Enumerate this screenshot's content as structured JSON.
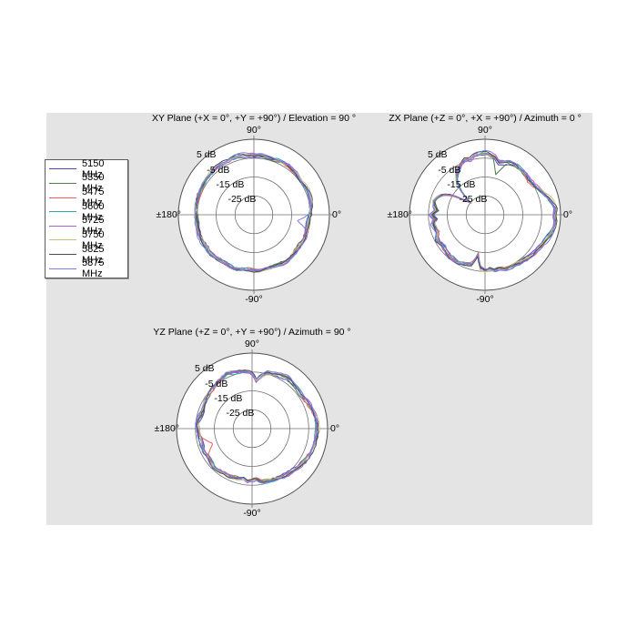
{
  "figure": {
    "background": "#ffffff",
    "panel_color": "#e4e4e4",
    "grid_color": "#6f6f6f",
    "outer_ring_color": "#4f4f4f"
  },
  "frequencies": [
    {
      "label": "5150 MHz",
      "color": "#4747D1"
    },
    {
      "label": "5350 MHz",
      "color": "#4E7D4E"
    },
    {
      "label": "5475 MHz",
      "color": "#F25C5C"
    },
    {
      "label": "5600 MHz",
      "color": "#2FA8A8"
    },
    {
      "label": "5725 MHz",
      "color": "#B35FC9"
    },
    {
      "label": "5750 MHz",
      "color": "#C2C27E"
    },
    {
      "label": "5825 MHz",
      "color": "#4D4D4D"
    },
    {
      "label": "5875 MHz",
      "color": "#7B7BEB"
    }
  ],
  "chart_data": [
    {
      "id": "xy-plane",
      "type": "polar-line",
      "title": "XY Plane (+X = 0°, +Y = +90°) / Elevation = 90 °",
      "angle_labels": {
        "top": "90°",
        "right": "0°",
        "left": "±180°",
        "bottom": "-90°"
      },
      "ring_labels": [
        "5 dB",
        "-5 dB",
        "-15 dB",
        "-25 dB"
      ],
      "ring_values_dB": [
        5,
        -5,
        -15,
        -25
      ],
      "center_dB": -35,
      "unit": "dB",
      "angle_step_deg": 5,
      "base_pattern_dB": [
        -5.5,
        -5.0,
        -4.6,
        -4.2,
        -4.0,
        -3.8,
        -4.0,
        -4.4,
        -4.2,
        -3.8,
        -3.6,
        -3.4,
        -3.2,
        -3.4,
        -3.6,
        -3.4,
        -3.2,
        -3.4,
        -3.6,
        -3.4,
        -3.2,
        -3.0,
        -3.2,
        -3.4,
        -3.2,
        -3.0,
        -3.2,
        -3.4,
        -3.6,
        -3.4,
        -3.6,
        -3.8,
        -4.0,
        -4.2,
        -4.0,
        -3.8,
        -4.0,
        -4.2,
        -4.4,
        -4.2,
        -4.0,
        -4.2,
        -4.4,
        -4.6,
        -4.4,
        -4.6,
        -4.8,
        -5.0,
        -5.2,
        -5.0,
        -4.8,
        -5.2,
        -5.6,
        -5.8,
        -5.6,
        -5.4,
        -5.6,
        -5.8,
        -5.6,
        -5.4,
        -5.2,
        -5.0,
        -5.2,
        -5.4,
        -5.6,
        -5.8,
        -5.6,
        -5.4,
        -5.6,
        -5.8,
        -6.0,
        -5.8
      ],
      "series_spread_dB": 1.1,
      "series_notches": [
        {
          "series": 7,
          "angle": 352,
          "dB": -12,
          "width": 10
        }
      ],
      "note": "All 8 frequency traces follow base_pattern_dB within about ±series_spread_dB"
    },
    {
      "id": "zx-plane",
      "type": "polar-line",
      "title": "ZX Plane (+Z = 0°, +X = +90°) / Azimuth = 0 °",
      "angle_labels": {
        "top": "90°",
        "right": "0°",
        "left": "±180°",
        "bottom": "-90°"
      },
      "ring_labels": [
        "5 dB",
        "-5 dB",
        "-15 dB",
        "-25 dB"
      ],
      "ring_values_dB": [
        5,
        -5,
        -15,
        -25
      ],
      "center_dB": -35,
      "unit": "dB",
      "angle_step_deg": 5,
      "base_pattern_dB": [
        1.8,
        2.2,
        1.2,
        -0.4,
        -2.0,
        -3.2,
        -4.2,
        -5.0,
        -5.2,
        -4.8,
        -4.4,
        -4.0,
        -3.8,
        -4.2,
        -5.5,
        -6.5,
        -4.0,
        -2.8,
        -2.4,
        -2.8,
        -3.2,
        -4.8,
        -4.0,
        -5.2,
        -7.0,
        -9.0,
        -12.0,
        -17.0,
        -24.0,
        -21.0,
        -14.0,
        -10.0,
        -8.0,
        -6.5,
        -7.5,
        -9.0,
        -6.5,
        -8.5,
        -7.0,
        -7.5,
        -8.5,
        -7.0,
        -6.5,
        -7.5,
        -7.0,
        -6.5,
        -6.0,
        -6.5,
        -6.0,
        -6.5,
        -7.0,
        -8.0,
        -13.5,
        -7.0,
        -5.5,
        -6.0,
        -5.0,
        -5.5,
        -4.5,
        -4.0,
        -4.2,
        -3.6,
        -3.2,
        -2.8,
        -2.2,
        -1.8,
        -1.2,
        -0.6,
        0.2,
        1.0,
        1.8,
        2.0
      ],
      "series_spread_dB": 1.3,
      "series_notches": [
        {
          "series": 1,
          "angle": 75,
          "dB": -13,
          "width": 8
        }
      ],
      "note": "All 8 frequency traces follow base_pattern_dB within about ±series_spread_dB; deep null near 140°"
    },
    {
      "id": "yz-plane",
      "type": "polar-line",
      "title": "YZ Plane (+Z = 0°, +Y = +90°) / Azimuth = 90 °",
      "angle_labels": {
        "top": "90°",
        "right": "0°",
        "left": "±180°",
        "bottom": "-90°"
      },
      "ring_labels": [
        "5 dB",
        "-5 dB",
        "-15 dB",
        "-25 dB"
      ],
      "ring_values_dB": [
        5,
        -5,
        -15,
        -25
      ],
      "center_dB": -35,
      "unit": "dB",
      "angle_step_deg": 5,
      "base_pattern_dB": [
        -0.5,
        -0.6,
        -0.8,
        -1.2,
        -1.6,
        -2.2,
        -3.0,
        -3.4,
        -3.0,
        -2.6,
        -2.2,
        -1.8,
        -2.6,
        -3.4,
        -4.2,
        -4.6,
        -7.0,
        -9.8,
        -6.0,
        -4.6,
        -4.2,
        -3.8,
        -3.4,
        -3.0,
        -3.8,
        -4.2,
        -4.6,
        -5.0,
        -5.4,
        -5.8,
        -6.2,
        -6.6,
        -7.0,
        -6.6,
        -6.2,
        -5.8,
        -6.2,
        -6.6,
        -7.0,
        -7.4,
        -7.0,
        -6.6,
        -7.0,
        -7.4,
        -7.0,
        -6.6,
        -6.8,
        -7.0,
        -7.2,
        -7.0,
        -7.4,
        -7.8,
        -8.4,
        -7.0,
        -7.6,
        -8.2,
        -6.6,
        -6.2,
        -5.8,
        -5.4,
        -5.0,
        -4.6,
        -4.2,
        -3.8,
        -3.2,
        -2.8,
        -2.4,
        -2.0,
        -1.6,
        -1.2,
        -0.8,
        -0.6
      ],
      "series_spread_dB": 1.1,
      "series_notches": [
        {
          "series": 2,
          "angle": 201,
          "dB": -13,
          "width": 13
        }
      ],
      "note": "All 8 frequency traces follow base_pattern_dB within about ±series_spread_dB"
    }
  ]
}
